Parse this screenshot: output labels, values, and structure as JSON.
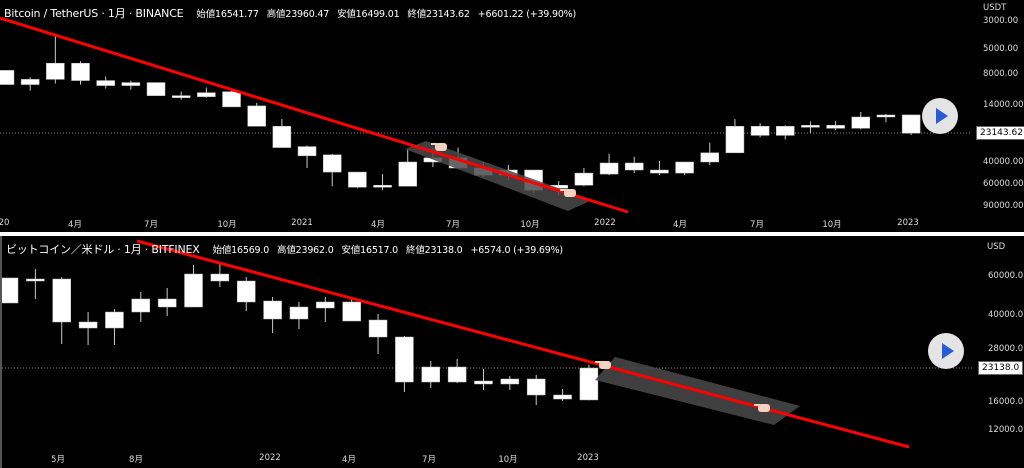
{
  "top_chart": {
    "symbol": "Bitcoin / TetherUS · 1月 · BINANCE",
    "open": "始値16541.77",
    "high": "高値23960.47",
    "low": "安値16499.01",
    "close": "終値23143.62",
    "change": "+6601.22 (+39.90%)",
    "currency": "USDT",
    "price_labels": [
      "3000.00",
      "5000.00",
      "8000.00",
      "14000.00",
      "40000.00",
      "60000.00",
      "90000.00"
    ],
    "current_price": "23143.62",
    "time_labels": [
      "20",
      "4月",
      "7月",
      "10月",
      "2021",
      "4月",
      "7月",
      "10月",
      "2022",
      "4月",
      "7月",
      "10月",
      "2023"
    ],
    "scale": "log-inverted",
    "candles": [
      [
        7300,
        9470,
        7300,
        9470
      ],
      [
        8610,
        9470,
        8300,
        10600
      ],
      [
        6400,
        8610,
        3740,
        9300
      ],
      [
        6400,
        8800,
        6170,
        9470
      ],
      [
        8800,
        9650,
        8150,
        10200
      ],
      [
        9130,
        9650,
        8800,
        10390
      ],
      [
        9130,
        11610,
        9130,
        11610
      ],
      [
        11610,
        11830,
        10790,
        12500
      ],
      [
        10990,
        11830,
        10010,
        12050
      ],
      [
        10790,
        14280,
        10390,
        14280
      ],
      [
        14020,
        20400,
        13270,
        20400
      ],
      [
        20400,
        30150,
        17840,
        30150
      ],
      [
        29600,
        35090,
        29060,
        43890
      ],
      [
        34450,
        47300,
        33820,
        61360
      ],
      [
        47300,
        62500,
        47300,
        63670
      ],
      [
        60240,
        62500,
        49080,
        66060
      ],
      [
        39300,
        61360,
        31290,
        61360
      ],
      [
        36400,
        39300,
        30150,
        43090
      ],
      [
        36400,
        43890,
        30150,
        44710
      ],
      [
        43890,
        49990,
        39300,
        52840
      ],
      [
        45540,
        49990,
        41530,
        54820
      ],
      [
        45540,
        66060,
        45540,
        70080
      ],
      [
        60240,
        63670,
        55840,
        72700
      ],
      [
        48180,
        60240,
        43890,
        61360
      ],
      [
        40030,
        49080,
        33820,
        49990
      ],
      [
        40030,
        45540,
        35740,
        48180
      ],
      [
        45540,
        48180,
        38470,
        49990
      ],
      [
        39300,
        48180,
        39300,
        49990
      ],
      [
        33200,
        39300,
        27500,
        41530
      ],
      [
        20400,
        33200,
        17840,
        33200
      ],
      [
        20400,
        24110,
        19300,
        25020
      ],
      [
        20400,
        24110,
        20030,
        25960
      ],
      [
        20030,
        20780,
        18600,
        23240
      ],
      [
        20030,
        21160,
        18600,
        21960
      ],
      [
        17190,
        21160,
        15680,
        21560
      ],
      [
        16570,
        17190,
        16270,
        18950
      ],
      [
        16542,
        23144,
        16499,
        23960
      ]
    ]
  },
  "bottom_chart": {
    "symbol": "ビットコイン／米ドル · 1月 · BITFINEX",
    "open": "始値16569.0",
    "high": "高値23962.0",
    "low": "安値16517.0",
    "close": "終値23138.0",
    "change": "+6574.0 (+39.69%)",
    "currency": "USD",
    "price_labels": [
      "60000.0",
      "40000.0",
      "28000.0",
      "16000.0",
      "12000.0"
    ],
    "current_price": "23138.0",
    "time_labels": [
      "5月",
      "8月",
      "2022",
      "4月",
      "7月",
      "10月",
      "2023"
    ],
    "scale": "log",
    "candles": [
      [
        59400,
        45700,
        59400,
        45700
      ],
      [
        58750,
        58150,
        65200,
        47660
      ],
      [
        58750,
        37460,
        60000,
        29760
      ],
      [
        37460,
        35180,
        41590,
        29450
      ],
      [
        41590,
        35180,
        42920,
        29450
      ],
      [
        47660,
        41590,
        51280,
        37460
      ],
      [
        47660,
        43830,
        53480,
        39900
      ],
      [
        61900,
        43830,
        68000,
        43830
      ],
      [
        61900,
        57540,
        70200,
        54040
      ],
      [
        57540,
        46190,
        60000,
        42030
      ],
      [
        46670,
        38660,
        48670,
        33390
      ],
      [
        43830,
        38660,
        46190,
        34810
      ],
      [
        46190,
        43370,
        48670,
        37460
      ],
      [
        46190,
        37850,
        48160,
        37850
      ],
      [
        38250,
        32020,
        40740,
        26800
      ],
      [
        32020,
        19990,
        32360,
        18000
      ],
      [
        23390,
        19990,
        24900,
        18770
      ],
      [
        23390,
        19990,
        25430,
        19780
      ],
      [
        20200,
        19580,
        22900,
        18380
      ],
      [
        20630,
        19580,
        21290,
        18380
      ],
      [
        20630,
        17450,
        21510,
        15710
      ],
      [
        17450,
        16730,
        18580,
        16390
      ],
      [
        23138,
        16569,
        23962,
        16517
      ]
    ]
  },
  "colors": {
    "trendline": "#ff0000",
    "candle": "#ffffff",
    "channel": "#4a4a4a",
    "play_icon": "#2a5bd7"
  },
  "icons": {
    "play": "play-icon",
    "drag_handle": "hand-pointer-icon"
  }
}
